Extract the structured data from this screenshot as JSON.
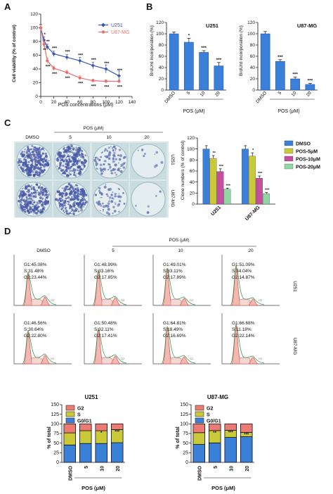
{
  "panel_labels": {
    "a": "A",
    "b": "B",
    "c": "C",
    "d": "D"
  },
  "panel_a": {
    "ylabel": "Cell viability (% of control)",
    "xlabel": "POS concentrations (μM)",
    "xticks": [
      "0",
      "20",
      "40",
      "60",
      "80",
      "100",
      "120",
      "140"
    ],
    "yticks": [
      "0",
      "20",
      "40",
      "60",
      "80",
      "100",
      "120"
    ],
    "legend": [
      "U251",
      "U87-MG"
    ]
  },
  "panel_b": {
    "ylabel": "BrdUrd incorporation (%)",
    "xlabel": "POS (μM)",
    "titles": [
      "U251",
      "U87-MG"
    ],
    "yticks_left": [
      "0",
      "20",
      "40",
      "60",
      "80",
      "100",
      "120"
    ],
    "yticks_right": [
      "0",
      "20",
      "40",
      "60",
      "80",
      "100",
      "120"
    ],
    "categories": [
      "DMSO",
      "5",
      "10",
      "20"
    ]
  },
  "panel_c": {
    "pos_header": "POS (μM)",
    "col_labels": [
      "DMSO",
      "5",
      "10",
      "20"
    ],
    "row_labels": [
      "U251",
      "U87-MG"
    ],
    "ylabel": "Clone numbers (% of control)",
    "yticks": [
      "0",
      "20",
      "40",
      "60",
      "80",
      "100",
      "120"
    ],
    "groups": [
      "U251",
      "U87-MG"
    ],
    "legend": [
      "DMSO",
      "POS-5μM",
      "POS-10μM",
      "POS-20μM"
    ]
  },
  "panel_d": {
    "col_labels": [
      "DMSO",
      "5",
      "10",
      "20"
    ],
    "pos_header": "POS (μM)",
    "row_labels": [
      "U251",
      "U87-MG"
    ],
    "histograms": [
      [
        "G1:45.08%",
        "S:31.48%",
        "G2:23.44%"
      ],
      [
        "G1:48.99%",
        "S:33.16%",
        "G2:17.85%"
      ],
      [
        "G1:49.01%",
        "S:33.11%",
        "G2:17.89%"
      ],
      [
        "G1:51.09%",
        "S:34.04%",
        "G2:14.87%"
      ],
      [
        "G1:46.56%",
        "S:30.64%",
        "G2:22.80%"
      ],
      [
        "G1:50.48%",
        "S:32.11%",
        "G2:17.41%"
      ],
      [
        "G1:64.81%",
        "S:18.49%",
        "G2:16.69%"
      ],
      [
        "G1:66.68%",
        "S:11.18%",
        "G2:22.14%"
      ]
    ],
    "stack_titles": [
      "U251",
      "U87-MG"
    ],
    "stack_ylabel": "% of total",
    "stack_xlabel": "POS (μM)",
    "stack_yticks": [
      "0",
      "25",
      "50",
      "75",
      "100",
      "125",
      "150"
    ],
    "stack_categories": [
      "DMSO",
      "5",
      "10",
      "20"
    ],
    "stack_legend": [
      "G2",
      "S",
      "G0/G1"
    ]
  },
  "chart_data": [
    {
      "panel": "A",
      "type": "line",
      "xlabel": "POS concentrations (μM)",
      "ylabel": "Cell viability (% of control)",
      "xlim": [
        0,
        140
      ],
      "ylim": [
        0,
        120
      ],
      "legend_position": "top-right",
      "x": [
        0,
        5,
        10,
        20,
        40,
        60,
        80,
        100,
        120
      ],
      "series": [
        {
          "name": "U251",
          "color": "#3a57b5",
          "marker": "diamond",
          "values": [
            100,
            82,
            72,
            62,
            57,
            52,
            45,
            40,
            30
          ],
          "errors": [
            5,
            5,
            4,
            4,
            4,
            5,
            5,
            6,
            7
          ],
          "annotations": [
            "",
            "*",
            "**",
            "***",
            "***",
            "***",
            "***",
            "***",
            "***"
          ]
        },
        {
          "name": "U87-MG",
          "color": "#e8706a",
          "marker": "circle",
          "values": [
            100,
            76,
            52,
            41,
            35,
            27,
            23,
            22,
            22
          ],
          "errors": [
            4,
            4,
            4,
            3,
            3,
            3,
            2,
            2,
            2
          ],
          "annotations": [
            "",
            "**",
            "***",
            "***",
            "***",
            "***",
            "***",
            "***",
            "***"
          ]
        }
      ]
    },
    {
      "panel": "B",
      "title": "U251",
      "type": "bar",
      "ylabel": "BrdUrd incorporation (%)",
      "xlabel": "POS (μM)",
      "ylim": [
        0,
        120
      ],
      "categories": [
        "DMSO",
        "5",
        "10",
        "20"
      ],
      "values": [
        100,
        85,
        67,
        43
      ],
      "errors": [
        3,
        7,
        3,
        6
      ],
      "annotations": [
        "",
        "*",
        "***",
        "***"
      ]
    },
    {
      "panel": "B",
      "title": "U87-MG",
      "type": "bar",
      "ylabel": "BrdUrd incorporation (%)",
      "xlabel": "POS (μM)",
      "ylim": [
        0,
        120
      ],
      "categories": [
        "DMSO",
        "5",
        "10",
        "20"
      ],
      "values": [
        100,
        51,
        20,
        10
      ],
      "errors": [
        4,
        3,
        3,
        2
      ],
      "annotations": [
        "",
        "***",
        "***",
        "***"
      ]
    },
    {
      "panel": "C",
      "type": "bar",
      "ylabel": "Clone numbers (% of control)",
      "ylim": [
        0,
        120
      ],
      "categories": [
        "U251",
        "U87-MG"
      ],
      "legend_position": "right",
      "series": [
        {
          "name": "DMSO",
          "color": "#3a80d8",
          "values": [
            100,
            100
          ],
          "errors": [
            6,
            6
          ],
          "annotations": [
            "",
            ""
          ]
        },
        {
          "name": "POS-5μM",
          "color": "#c9c93a",
          "values": [
            83,
            87
          ],
          "errors": [
            5,
            6
          ],
          "annotations": [
            "**",
            "*"
          ]
        },
        {
          "name": "POS-10μM",
          "color": "#c64f9c",
          "values": [
            59,
            47
          ],
          "errors": [
            5,
            4
          ],
          "annotations": [
            "***",
            "***"
          ]
        },
        {
          "name": "POS-20μM",
          "color": "#8fd8a6",
          "values": [
            27,
            19
          ],
          "errors": [
            2,
            2
          ],
          "annotations": [
            "***",
            "***"
          ]
        }
      ]
    },
    {
      "panel": "D",
      "title": "U251",
      "type": "bar",
      "stacked": true,
      "ylabel": "% of total",
      "xlabel": "POS (μM)",
      "ylim": [
        0,
        150
      ],
      "categories": [
        "DMSO",
        "5",
        "10",
        "20"
      ],
      "legend_position": "top-left",
      "series": [
        {
          "name": "G0/G1",
          "color": "#3a80d8",
          "values": [
            45.08,
            48.99,
            49.01,
            51.09
          ]
        },
        {
          "name": "S",
          "color": "#c9c93a",
          "values": [
            31.48,
            33.16,
            33.11,
            34.04
          ]
        },
        {
          "name": "G2",
          "color": "#ec7c73",
          "values": [
            23.44,
            17.85,
            17.89,
            14.87
          ]
        }
      ],
      "annotations": [
        "",
        "",
        "*",
        "***"
      ]
    },
    {
      "panel": "D",
      "title": "U87-MG",
      "type": "bar",
      "stacked": true,
      "ylabel": "% of total",
      "xlabel": "POS (μM)",
      "ylim": [
        0,
        150
      ],
      "categories": [
        "DMSO",
        "5",
        "10",
        "20"
      ],
      "legend_position": "top-left",
      "series": [
        {
          "name": "G0/G1",
          "color": "#3a80d8",
          "values": [
            46.56,
            50.48,
            64.81,
            66.68
          ]
        },
        {
          "name": "S",
          "color": "#c9c93a",
          "values": [
            30.64,
            32.11,
            18.49,
            11.18
          ]
        },
        {
          "name": "G2",
          "color": "#ec7c73",
          "values": [
            22.8,
            17.41,
            16.69,
            22.14
          ]
        }
      ],
      "annotations": [
        "",
        "**",
        "***",
        "***"
      ]
    }
  ]
}
